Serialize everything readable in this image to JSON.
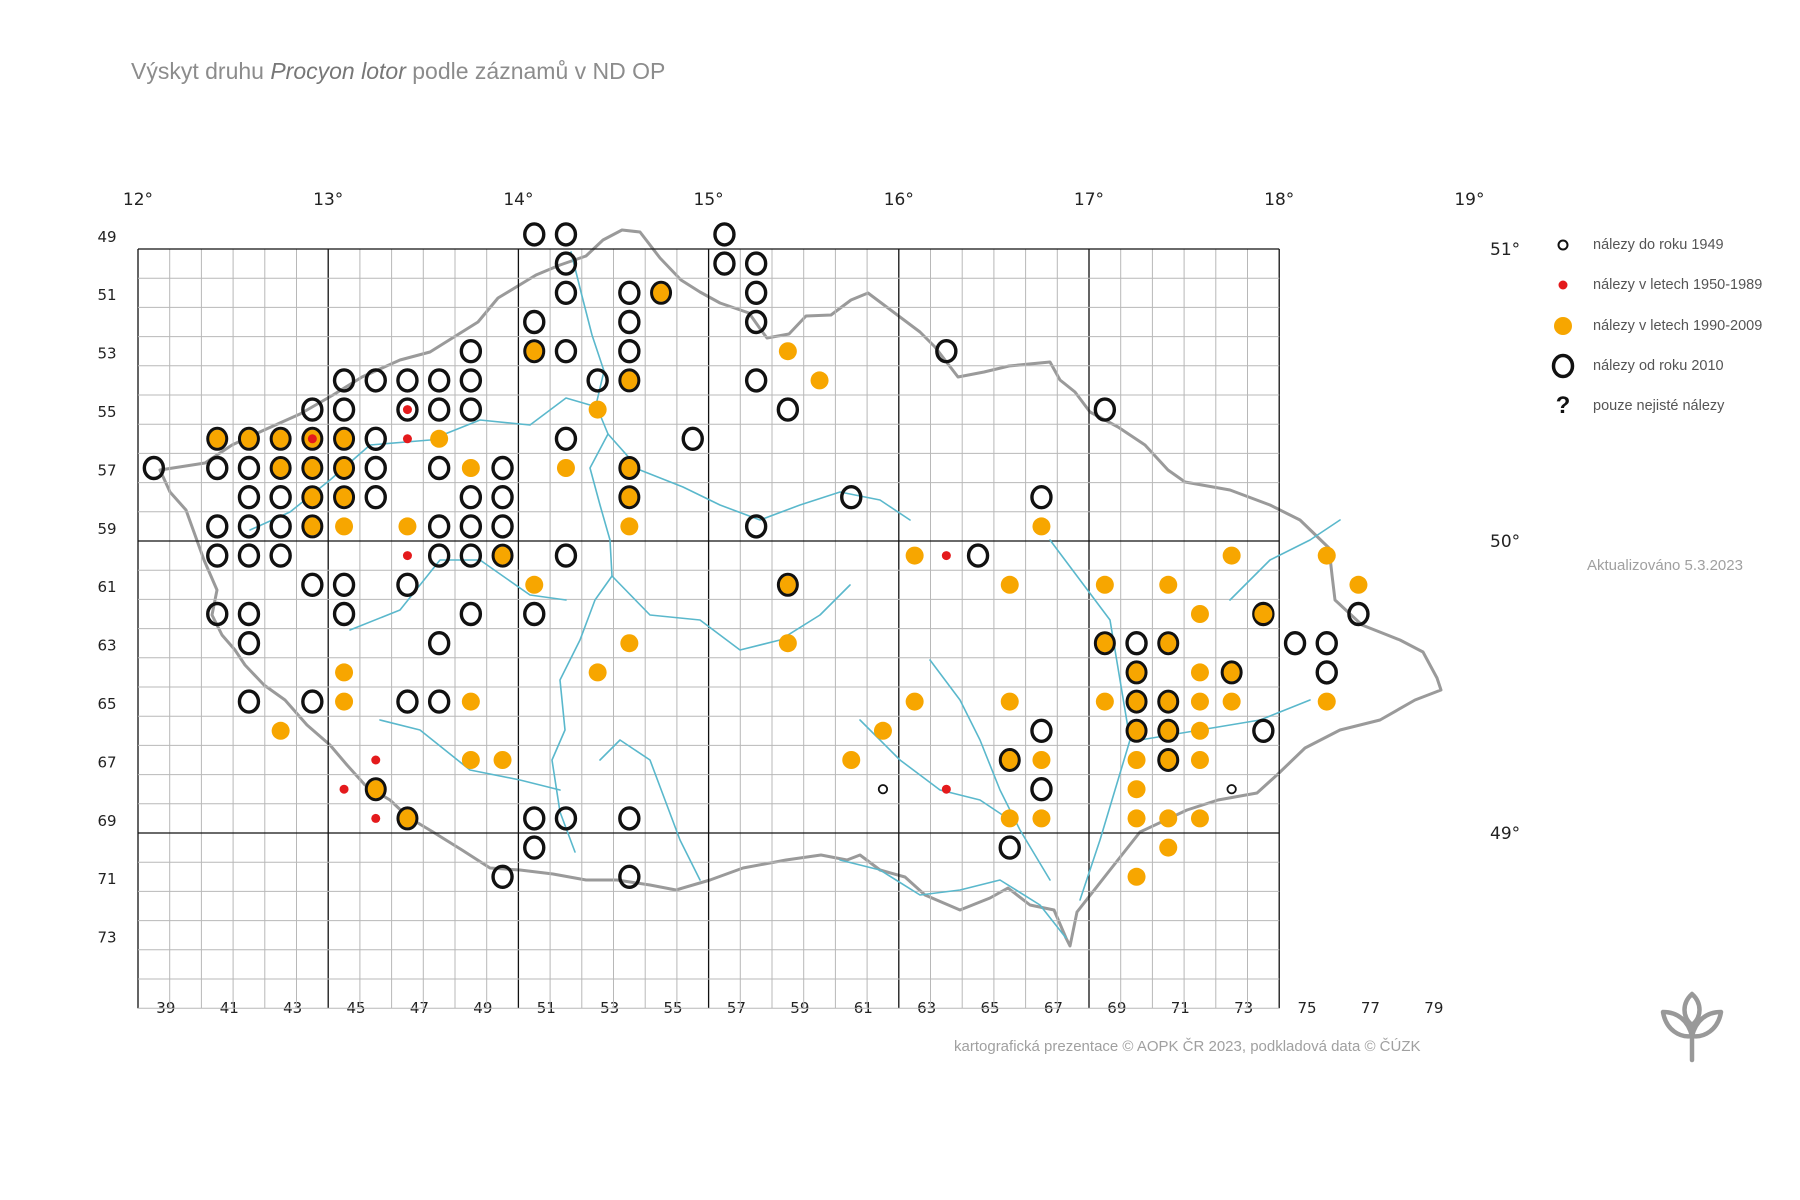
{
  "title": {
    "prefix": "Výskyt druhu ",
    "species": "Procyon lotor",
    "suffix": " podle záznamů v ND OP"
  },
  "grid": {
    "lon_labels": [
      "12°",
      "13°",
      "14°",
      "15°",
      "16°",
      "17°",
      "18°",
      "19°"
    ],
    "lat_labels": [
      "51°",
      "50°",
      "49°"
    ],
    "row_labels": [
      "49",
      "51",
      "53",
      "55",
      "57",
      "59",
      "61",
      "63",
      "65",
      "67",
      "69",
      "71",
      "73"
    ],
    "col_labels": [
      "39",
      "41",
      "43",
      "45",
      "47",
      "49",
      "51",
      "53",
      "55",
      "57",
      "59",
      "61",
      "63",
      "65",
      "67",
      "69",
      "71",
      "73",
      "75",
      "77",
      "79"
    ]
  },
  "legend": [
    {
      "key": "pre1949",
      "label": "nálezy do roku 1949"
    },
    {
      "key": "1950_1989",
      "label": "nálezy v letech 1950-1989"
    },
    {
      "key": "1990_2009",
      "label": "nálezy v letech 1990-2009"
    },
    {
      "key": "since2010",
      "label": "nálezy od roku 2010"
    },
    {
      "key": "uncertain",
      "label": "pouze nejisté nálezy",
      "symbol": "?"
    }
  ],
  "colors": {
    "grid": "#b8b8b8",
    "grid_major": "#111111",
    "border": "#9a9a9a",
    "river": "#5ab8cc",
    "orange": "#f7a600",
    "red": "#e41a1c",
    "ring": "#111111"
  },
  "updated": "Aktualizováno 5.3.2023",
  "credit": "kartografická prezentace © AOPK ČR 2023, podkladová data © ČÚZK",
  "records": {
    "since2010": [
      [
        6,
        49
      ],
      [
        7,
        49
      ],
      [
        7,
        50
      ],
      [
        6,
        51
      ],
      [
        7,
        51
      ],
      [
        12,
        49
      ],
      [
        11,
        50
      ],
      [
        12,
        50
      ],
      [
        6,
        52
      ],
      [
        7,
        52
      ],
      [
        12,
        52
      ],
      [
        5,
        53
      ],
      [
        10,
        53
      ],
      [
        12,
        53
      ],
      [
        7,
        54
      ],
      [
        4,
        55
      ],
      [
        10,
        55
      ],
      [
        14,
        55
      ],
      [
        15,
        55
      ],
      [
        0,
        57
      ],
      [
        13,
        59
      ],
      [
        14,
        60
      ],
      [
        2,
        61
      ],
      [
        3,
        61
      ],
      [
        4,
        61
      ],
      [
        5,
        61
      ],
      [
        6,
        61
      ],
      [
        11,
        61
      ],
      [
        12,
        62
      ],
      [
        3,
        63
      ],
      [
        1,
        64
      ],
      [
        3,
        64
      ],
      [
        5,
        64
      ],
      [
        7,
        64
      ],
      [
        9,
        64
      ],
      [
        1,
        65
      ],
      [
        4,
        65
      ],
      [
        5,
        65
      ],
      [
        4,
        66
      ],
      [
        4,
        67
      ],
      [
        1,
        68
      ],
      [
        5,
        68
      ],
      [
        1,
        69
      ],
      [
        0,
        70
      ],
      [
        1,
        70
      ],
      [
        2,
        70
      ],
      [
        4,
        73
      ],
      [
        10,
        73
      ],
      [
        1,
        74
      ],
      [
        3,
        74
      ],
      [
        5,
        76
      ],
      [
        11,
        76
      ],
      [
        8,
        77
      ],
      [
        9,
        77
      ],
      [
        10,
        77
      ],
      [
        11,
        77
      ],
      [
        4,
        78
      ],
      [
        2,
        79
      ],
      [
        3,
        79
      ],
      [
        4,
        79
      ],
      [
        8,
        79
      ],
      [
        9,
        79
      ],
      [
        10,
        79
      ],
      [
        11,
        79
      ],
      [
        5,
        80
      ],
      [
        6,
        80
      ],
      [
        7,
        80
      ],
      [
        8,
        80
      ],
      [
        11,
        80
      ],
      [
        13,
        80
      ],
      [
        14,
        80
      ],
      [
        15,
        80
      ],
      [
        1,
        81
      ],
      [
        3,
        81
      ],
      [
        5,
        81
      ],
      [
        8,
        81
      ],
      [
        9,
        81
      ],
      [
        10,
        81
      ],
      [
        11,
        82
      ],
      [
        2,
        82
      ],
      [
        12,
        82
      ],
      [
        5,
        82
      ],
      [
        1,
        83
      ],
      [
        2,
        83
      ],
      [
        3,
        83
      ],
      [
        7,
        83
      ],
      [
        8,
        83
      ],
      [
        10,
        83
      ],
      [
        11,
        83
      ],
      [
        2,
        85
      ],
      [
        5,
        85
      ],
      [
        6,
        85
      ],
      [
        10,
        85
      ],
      [
        15,
        87
      ],
      [
        5,
        87
      ],
      [
        4,
        88
      ],
      [
        6,
        88
      ],
      [
        0,
        88
      ],
      [
        12,
        89
      ],
      [
        7,
        89
      ],
      [
        0,
        90
      ],
      [
        12,
        90
      ],
      [
        12,
        94
      ],
      [
        10,
        96
      ],
      [
        12,
        96
      ],
      [
        9,
        97
      ],
      [
        11,
        98
      ],
      [
        13,
        98
      ],
      [
        8,
        100
      ],
      [
        10,
        100
      ],
      [
        12,
        100
      ],
      [
        9,
        103
      ],
      [
        11,
        103
      ],
      [
        1,
        104
      ],
      [
        14,
        104
      ],
      [
        5,
        105
      ]
    ],
    "since2010_filled": [],
    "orange_ring": [],
    "orange": [],
    "red": [],
    "pre1949": []
  }
}
